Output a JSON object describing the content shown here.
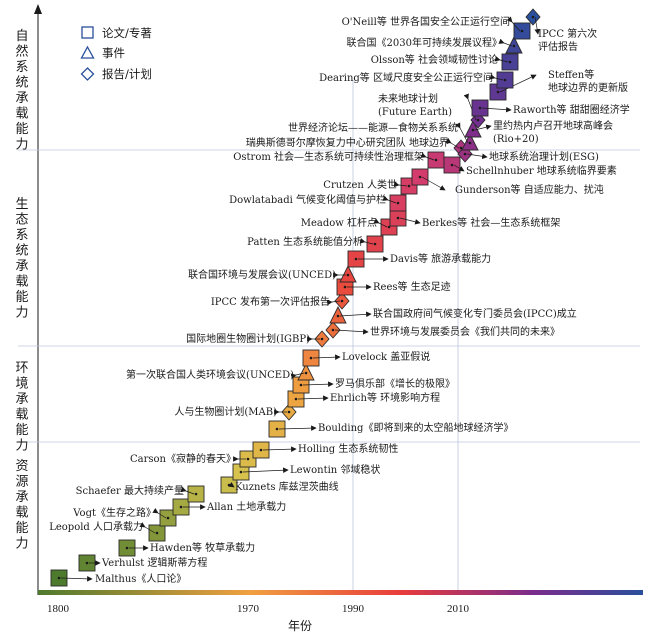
{
  "legend": [
    {
      "shape": "square",
      "label": "论文/专著"
    },
    {
      "shape": "triangle",
      "label": "事件"
    },
    {
      "shape": "diamond",
      "label": "报告/计划"
    }
  ],
  "phases": [
    {
      "label": "自然系统承载能力"
    },
    {
      "label": "生态系统承载能力"
    },
    {
      "label": "环境承载能力"
    },
    {
      "label": "资源承载能力"
    }
  ],
  "x_axis": {
    "title": "年份",
    "ticks": [
      "1800",
      "1970",
      "1990",
      "2010"
    ]
  },
  "colors": {
    "early": "#4e7a2e",
    "mid": "#f0a040",
    "late": "#e83c3c",
    "recent": "#7a2c8c",
    "latest": "#2a4f9c",
    "stroke": "#2a2a2a"
  },
  "events": [
    {
      "shape": "square",
      "label": "Malthus《人口论》"
    },
    {
      "shape": "square",
      "label": "Verhulst 逻辑斯蒂方程"
    },
    {
      "shape": "square",
      "label": "Hawden等 牧草承载力"
    },
    {
      "shape": "square",
      "label": "Leopold 人口承载力"
    },
    {
      "shape": "square",
      "label": "Vogt《生存之路》"
    },
    {
      "shape": "square",
      "label": "Allan 土地承载力"
    },
    {
      "shape": "square",
      "label": "Schaefer 最大持续产量"
    },
    {
      "shape": "square",
      "label": "Kuznets 库兹涅茨曲线"
    },
    {
      "shape": "square",
      "label": "Lewontin 邻域稳状"
    },
    {
      "shape": "square",
      "label": "Carson《寂静的春天》"
    },
    {
      "shape": "square",
      "label": "Holling 生态系统韧性"
    },
    {
      "shape": "square",
      "label": "Boulding《即将到来的太空船地球经济学》"
    },
    {
      "shape": "diamond",
      "label": "人与生物圈计划(MAB)"
    },
    {
      "shape": "square",
      "label": "Ehrlich等 环境影响方程"
    },
    {
      "shape": "square",
      "label": "罗马俱乐部《增长的极限》"
    },
    {
      "shape": "triangle",
      "label": "第一次联合国人类环境会议(UNCED)"
    },
    {
      "shape": "square",
      "label": "Lovelock 盖亚假说"
    },
    {
      "shape": "diamond",
      "label": "国际地圈生物圈计划(IGBP)"
    },
    {
      "shape": "diamond",
      "label": "世界环境与发展委员会《我们共同的未来》"
    },
    {
      "shape": "triangle",
      "label": "联合国政府间气候变化专门委员会(IPCC)成立"
    },
    {
      "shape": "diamond",
      "label": "IPCC 发布第一次评估报告"
    },
    {
      "shape": "square",
      "label": "Rees等 生态足迹"
    },
    {
      "shape": "triangle",
      "label": "联合国环境与发展会议(UNCED)"
    },
    {
      "shape": "square",
      "label": "Davis等 旅游承载能力"
    },
    {
      "shape": "square",
      "label": "Patten 生态系统能值分析"
    },
    {
      "shape": "square",
      "label": "Meadow 杠杆点"
    },
    {
      "shape": "square",
      "label": "Berkes等 社会—生态系统框架"
    },
    {
      "shape": "square",
      "label": "Dowlatabadi 气候变化阈值与护栏"
    },
    {
      "shape": "square",
      "label": "Crutzen 人类世"
    },
    {
      "shape": "square",
      "label": "Gunderson等 自适应能力、扰沌"
    },
    {
      "shape": "square",
      "label": "Ostrom 社会—生态系统可持续性治理框架"
    },
    {
      "shape": "square",
      "label": "Schellnhuber 地球系统临界要素"
    },
    {
      "shape": "diamond",
      "label": "瑞典斯德哥尔摩恢复力中心研究团队 地球边界"
    },
    {
      "shape": "diamond",
      "label": "地球系统治理计划(ESG)"
    },
    {
      "shape": "triangle",
      "label": "世界经济论坛——能源—食物关系系统"
    },
    {
      "shape": "triangle",
      "label": "里约热内卢召开地球高峰会(Rio+20)"
    },
    {
      "shape": "diamond",
      "label": "未来地球计划(Future Earth)"
    },
    {
      "shape": "square",
      "label": "Raworth等 甜甜圈经济学"
    },
    {
      "shape": "square",
      "label": "Steffen等 地球边界的更新版"
    },
    {
      "shape": "square",
      "label": "Dearing等 区域尺度安全公正运行空间"
    },
    {
      "shape": "square",
      "label": "Olsson等 社会领域韧性讨论"
    },
    {
      "shape": "triangle",
      "label": "联合国《2030年可持续发展议程》"
    },
    {
      "shape": "square",
      "label": "O'Neill等 世界各国安全公正运行空间"
    },
    {
      "shape": "diamond",
      "label": "IPCC 第六次评估报告"
    }
  ]
}
